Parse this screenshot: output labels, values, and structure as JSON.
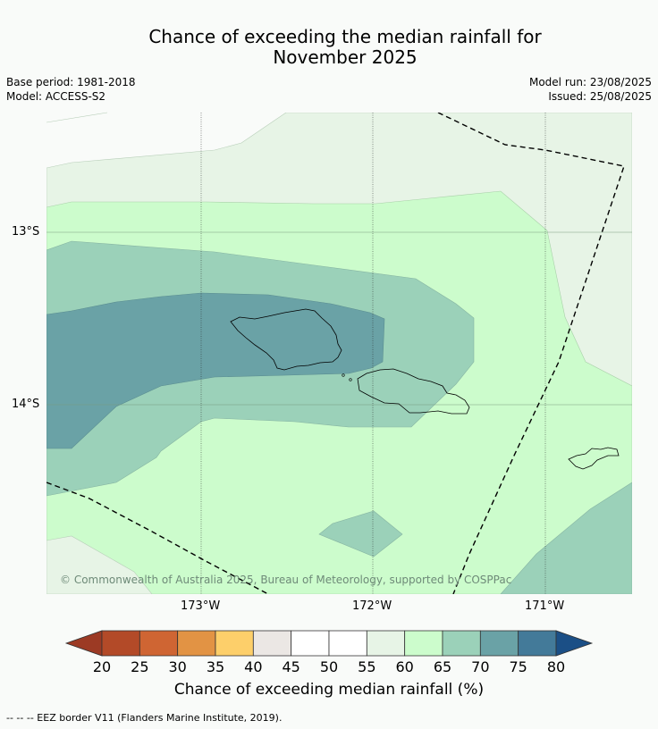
{
  "title_line1": "Chance of exceeding the median rainfall for",
  "title_line2": "November 2025",
  "meta": {
    "base_period": "Base period: 1981-2018",
    "model": "Model: ACCESS-S2",
    "model_run": "Model run: 23/08/2025",
    "issued": "Issued: 25/08/2025"
  },
  "latitude_labels": [
    "13°S",
    "14°S"
  ],
  "longitude_labels": [
    "173°W",
    "172°W",
    "171°W"
  ],
  "credit": "© Commonwealth of Australia 2025, Bureau of Meteorology, supported by COSPPac",
  "colorbar": {
    "ticks": [
      "20",
      "25",
      "30",
      "35",
      "40",
      "45",
      "50",
      "55",
      "60",
      "65",
      "70",
      "75",
      "80"
    ],
    "title": "Chance of exceeding median rainfall (%)",
    "colors": [
      "#b34a28",
      "#cf6533",
      "#e29344",
      "#fdcf6a",
      "#ebe7e4",
      "#ffffff",
      "#ffffff",
      "#e7f4e6",
      "#ccfccc",
      "#9bd1b9",
      "#6aa2a6",
      "#437a99"
    ],
    "low_extend_color": "#9c3a24",
    "high_extend_color": "#1b4f86"
  },
  "footnote": "--  --  -- EEZ border V11 (Flanders Marine Institute, 2019)."
}
